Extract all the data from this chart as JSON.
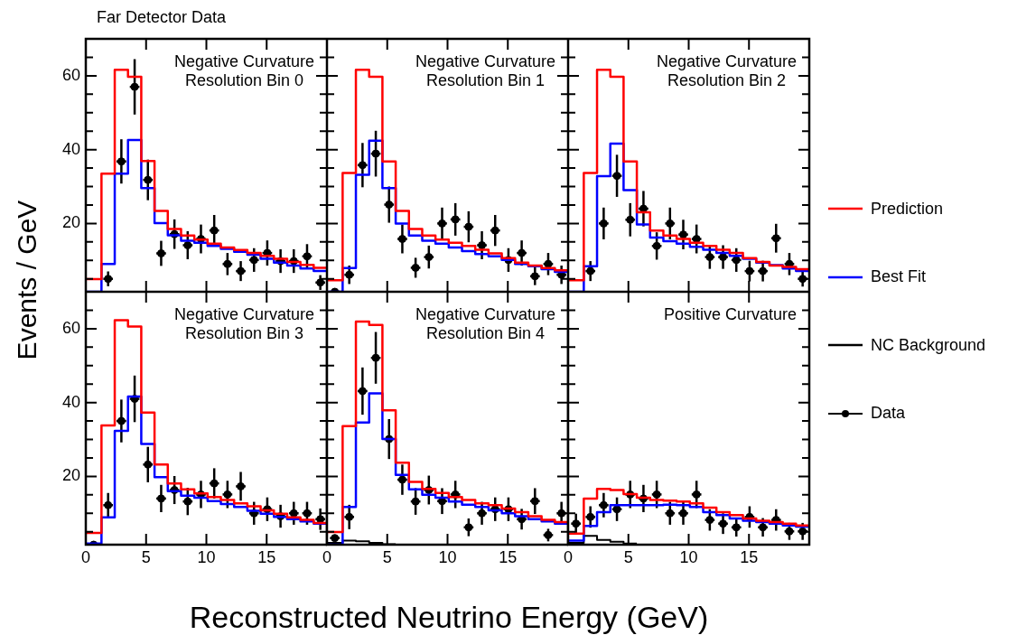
{
  "chart_data": [
    {
      "type": "histogram",
      "title": "Far Detector Data",
      "ylabel": "Events / GeV",
      "annotations": [
        "Negative Curvature\nResolution Bin 0"
      ],
      "bins": [
        0,
        1.3,
        2.4,
        3.5,
        4.6,
        5.7,
        6.8,
        7.9,
        9,
        10.1,
        11.2,
        12.3,
        13.4,
        14.5,
        15.6,
        16.7,
        17.8,
        18.9,
        20
      ],
      "xlim": [
        0,
        20
      ],
      "ylim": [
        1.5,
        70
      ],
      "xticks": [
        0,
        5,
        10,
        15
      ],
      "yticks": [
        {
          "value": 5,
          "label": null
        },
        {
          "value": 10,
          "label": null
        },
        {
          "value": 15,
          "label": null
        },
        20,
        {
          "value": 25,
          "label": null
        },
        {
          "value": 30,
          "label": null
        },
        {
          "value": 35,
          "label": null
        },
        40,
        {
          "value": 45,
          "label": null
        },
        {
          "value": 50,
          "label": null
        },
        {
          "value": 55,
          "label": null
        },
        60,
        {
          "value": 65,
          "label": null
        }
      ],
      "tick_labels": "y",
      "marker": "circle",
      "series": [
        {
          "color": "#ff0000",
          "values": [
            4.9,
            33.5,
            61.6,
            59.7,
            36.9,
            23.4,
            18.5,
            16.7,
            15.6,
            14.5,
            13.5,
            12.8,
            12,
            11.2,
            10.4,
            9.6,
            8.8,
            8.0
          ]
        },
        {
          "color": "#0000ff",
          "values": [
            1.5,
            9.0,
            33.5,
            42.6,
            29.6,
            20.1,
            16.8,
            15.3,
            14.8,
            13.9,
            13.1,
            12.3,
            11.5,
            10.4,
            9.4,
            8.6,
            7.8,
            7.1
          ]
        },
        {
          "type": "scatter",
          "color": "#000000",
          "x": [
            1.85,
            2.95,
            4.05,
            5.15,
            6.25,
            7.35,
            8.45,
            9.55,
            10.65,
            11.75,
            12.85,
            13.95,
            15.05,
            16.15,
            17.25,
            18.35,
            19.45
          ],
          "values": [
            5.0,
            36.8,
            57.0,
            31.8,
            11.9,
            17.1,
            14.1,
            15.8,
            18.1,
            9.0,
            7.1,
            10.1,
            12.0,
            9.8,
            9.8,
            11.1,
            4.0
          ],
          "errors": [
            2,
            6,
            7.5,
            5.5,
            3.4,
            4,
            3.8,
            3.9,
            4.2,
            3,
            2.7,
            3.2,
            3.4,
            3.2,
            3.2,
            3.3,
            2
          ],
          "xerrors": [
            0.4,
            0.4,
            0.4,
            0.4,
            0.4,
            0.4,
            0.4,
            0.4,
            0.4,
            0.4,
            0.4,
            0.4,
            0.4,
            0.4,
            0.4,
            0.4,
            0.4
          ]
        }
      ]
    },
    {
      "type": "histogram",
      "annotations": [
        "Negative Curvature\nResolution Bin 1"
      ],
      "bins": [
        0,
        1.3,
        2.4,
        3.5,
        4.6,
        5.7,
        6.8,
        7.9,
        9,
        10.1,
        11.2,
        12.3,
        13.4,
        14.5,
        15.6,
        16.7,
        17.8,
        18.9,
        20
      ],
      "xlim": [
        0,
        20
      ],
      "ylim": [
        1.5,
        70
      ],
      "xticks": [
        0,
        5,
        10,
        15
      ],
      "yticks": [
        {
          "value": 5,
          "label": null
        },
        {
          "value": 10,
          "label": null
        },
        {
          "value": 15,
          "label": null
        },
        20,
        {
          "value": 25,
          "label": null
        },
        {
          "value": 30,
          "label": null
        },
        {
          "value": 35,
          "label": null
        },
        40,
        {
          "value": 45,
          "label": null
        },
        {
          "value": 50,
          "label": null
        },
        {
          "value": 55,
          "label": null
        },
        60,
        {
          "value": 65,
          "label": null
        }
      ],
      "tick_labels": false,
      "marker": "circle",
      "series": [
        {
          "color": "#ff0000",
          "values": [
            4.6,
            33.7,
            61.6,
            59.7,
            36.8,
            23.4,
            18.5,
            16.7,
            15.6,
            14.8,
            13.9,
            12.9,
            11.9,
            10.6,
            9.4,
            8.6,
            7.9,
            7.3
          ]
        },
        {
          "color": "#0000ff",
          "values": [
            1.5,
            7.9,
            33.2,
            42.4,
            29.6,
            20.0,
            16.7,
            15.3,
            14.5,
            13.5,
            12.5,
            11.7,
            11.1,
            10.1,
            9.0,
            8.4,
            7.6,
            6.9
          ]
        },
        {
          "type": "scatter",
          "color": "#000000",
          "x": [
            0.65,
            1.85,
            2.95,
            4.05,
            5.15,
            6.25,
            7.35,
            8.45,
            9.55,
            10.65,
            11.75,
            12.85,
            13.95,
            15.05,
            16.15,
            17.25,
            18.35,
            19.45
          ],
          "values": [
            1.5,
            6.1,
            35.8,
            38.9,
            25.1,
            15.8,
            8.0,
            10.9,
            20.0,
            21.1,
            19.1,
            14.1,
            18.1,
            10.1,
            12.0,
            5.7,
            9.0,
            6.1
          ],
          "errors": [
            null,
            2.5,
            6,
            6.2,
            4.9,
            3.9,
            2.7,
            3.1,
            4.3,
            4.4,
            4.2,
            3.8,
            4.2,
            3.2,
            3.4,
            2.4,
            3,
            2.5
          ],
          "xerrors": [
            0.4,
            0.4,
            0.4,
            0.4,
            0.4,
            0.4,
            0.4,
            0.4,
            0.4,
            0.4,
            0.4,
            0.4,
            0.4,
            0.4,
            0.4,
            0.4,
            0.4,
            0.4
          ]
        }
      ]
    },
    {
      "type": "histogram",
      "annotations": [
        "Negative Curvature\nResolution Bin 2"
      ],
      "bins": [
        0,
        1.3,
        2.4,
        3.5,
        4.6,
        5.7,
        6.8,
        7.9,
        9,
        10.1,
        11.2,
        12.3,
        13.4,
        14.5,
        15.6,
        16.7,
        17.8,
        18.9,
        20
      ],
      "xlim": [
        0,
        20
      ],
      "ylim": [
        1.5,
        70
      ],
      "xticks": [
        0,
        5,
        10,
        15
      ],
      "yticks": [
        {
          "value": 5,
          "label": null
        },
        {
          "value": 10,
          "label": null
        },
        {
          "value": 15,
          "label": null
        },
        20,
        {
          "value": 25,
          "label": null
        },
        {
          "value": 30,
          "label": null
        },
        {
          "value": 35,
          "label": null
        },
        40,
        {
          "value": 45,
          "label": null
        },
        {
          "value": 50,
          "label": null
        },
        {
          "value": 55,
          "label": null
        },
        60,
        {
          "value": 65,
          "label": null
        }
      ],
      "tick_labels": false,
      "marker": "circle",
      "series": [
        {
          "color": "#ff0000",
          "values": [
            4.6,
            33.7,
            61.6,
            59.7,
            36.8,
            23.0,
            18.1,
            16.7,
            15.8,
            14.8,
            13.9,
            12.9,
            12.0,
            10.6,
            9.6,
            8.6,
            8.2,
            7.6
          ]
        },
        {
          "color": "#0000ff",
          "values": [
            1.5,
            8.4,
            32.8,
            41.6,
            29.0,
            19.7,
            16.2,
            15.2,
            14.5,
            13.7,
            12.9,
            12.0,
            11.2,
            10.4,
            9.4,
            8.7,
            7.8,
            7.1
          ]
        },
        {
          "type": "scatter",
          "color": "#000000",
          "x": [
            1.85,
            2.95,
            4.05,
            5.15,
            6.25,
            7.35,
            8.45,
            9.55,
            10.65,
            11.75,
            12.85,
            13.95,
            15.05,
            16.15,
            17.25,
            18.35,
            19.45
          ],
          "values": [
            7.1,
            20.0,
            32.9,
            21.0,
            24.0,
            13.9,
            20.0,
            17.0,
            15.8,
            10.9,
            10.9,
            10.1,
            7.1,
            7.1,
            16.0,
            9.0,
            5.0
          ],
          "errors": [
            2.7,
            4.3,
            5.7,
            4.5,
            4.8,
            3.7,
            4.3,
            4,
            3.9,
            3.2,
            3.2,
            3.2,
            2.8,
            2.8,
            3.9,
            3,
            2.1
          ],
          "xerrors": [
            0.4,
            0.4,
            0.4,
            0.4,
            0.4,
            0.4,
            0.4,
            0.4,
            0.4,
            0.4,
            0.4,
            0.4,
            0.4,
            0.4,
            0.4,
            0.4,
            0.4
          ]
        }
      ]
    },
    {
      "type": "histogram",
      "annotations": [
        "Negative Curvature\nResolution Bin 3"
      ],
      "bins": [
        0,
        1.3,
        2.4,
        3.5,
        4.6,
        5.7,
        6.8,
        7.9,
        9,
        10.1,
        11.2,
        12.3,
        13.4,
        14.5,
        15.6,
        16.7,
        17.8,
        18.9,
        20
      ],
      "xlim": [
        0,
        20
      ],
      "ylim": [
        1.5,
        70
      ],
      "xticks": [
        0,
        5,
        10,
        15
      ],
      "yticks": [
        {
          "value": 5,
          "label": null
        },
        {
          "value": 10,
          "label": null
        },
        {
          "value": 15,
          "label": null
        },
        20,
        {
          "value": 25,
          "label": null
        },
        {
          "value": 30,
          "label": null
        },
        {
          "value": 35,
          "label": null
        },
        40,
        {
          "value": 45,
          "label": null
        },
        {
          "value": 50,
          "label": null
        },
        {
          "value": 55,
          "label": null
        },
        60,
        {
          "value": 65,
          "label": null
        }
      ],
      "marker": "circle",
      "series": [
        {
          "color": "#ff0000",
          "values": [
            4.7,
            33.8,
            62.3,
            60.6,
            37.3,
            23.2,
            18.1,
            16.5,
            15.4,
            14.4,
            13.6,
            12.7,
            11.9,
            10.8,
            9.9,
            8.9,
            8.2,
            7.4
          ]
        },
        {
          "color": "#0000ff",
          "values": [
            1.8,
            8.9,
            32.3,
            41.6,
            28.8,
            19.8,
            16.0,
            14.8,
            14.2,
            13.3,
            12.5,
            11.7,
            10.7,
            9.9,
            9.0,
            8.4,
            7.8,
            7.2
          ]
        },
        {
          "type": "scatter",
          "color": "#000000",
          "x": [
            0.65,
            1.85,
            2.95,
            4.05,
            5.15,
            6.25,
            7.35,
            8.45,
            9.55,
            10.65,
            11.75,
            12.85,
            13.95,
            15.05,
            16.15,
            17.25,
            18.35,
            19.45
          ],
          "values": [
            1.5,
            12.2,
            35.0,
            41.0,
            23.2,
            14.0,
            16.3,
            13.2,
            15.1,
            18.1,
            15.1,
            17.3,
            10.0,
            11.1,
            9.2,
            10.0,
            10.0,
            8.4
          ],
          "errors": [
            null,
            3.3,
            5.8,
            6.3,
            4.8,
            3.7,
            3.8,
            3.7,
            3.7,
            4.1,
            3.7,
            3.9,
            3.1,
            3.2,
            3.1,
            3.1,
            3.1,
            2.9
          ],
          "xerrors": [
            0.4,
            0.4,
            0.4,
            0.4,
            0.4,
            0.4,
            0.4,
            0.4,
            0.4,
            0.4,
            0.4,
            0.4,
            0.4,
            0.4,
            0.4,
            0.4,
            0.4,
            0.4
          ]
        }
      ]
    },
    {
      "type": "histogram",
      "xlabel": "Reconstructed Neutrino Energy (GeV)",
      "annotations": [
        "Negative Curvature\nResolution Bin 4"
      ],
      "bins": [
        0,
        1.3,
        2.4,
        3.5,
        4.6,
        5.7,
        6.8,
        7.9,
        9,
        10.1,
        11.2,
        12.3,
        13.4,
        14.5,
        15.6,
        16.7,
        17.8,
        18.9,
        20
      ],
      "xlim": [
        0,
        20
      ],
      "ylim": [
        1.5,
        70
      ],
      "xticks": [
        0,
        5,
        10,
        15
      ],
      "yticks": [
        {
          "value": 5,
          "label": null
        },
        {
          "value": 10,
          "label": null
        },
        {
          "value": 15,
          "label": null
        },
        20,
        {
          "value": 25,
          "label": null
        },
        {
          "value": 30,
          "label": null
        },
        {
          "value": 35,
          "label": null
        },
        40,
        {
          "value": 45,
          "label": null
        },
        {
          "value": 50,
          "label": null
        },
        {
          "value": 55,
          "label": null
        },
        60,
        {
          "value": 65,
          "label": null
        }
      ],
      "tick_labels": "x",
      "marker": "circle",
      "series": [
        {
          "color": "#ff0000",
          "values": [
            4.9,
            33.6,
            61.9,
            61.0,
            37.9,
            23.7,
            18.5,
            16.6,
            15.5,
            14.4,
            13.6,
            12.7,
            12.2,
            11.3,
            10.3,
            9.2,
            8.2,
            7.6
          ]
        },
        {
          "color": "#0000ff",
          "values": [
            1.5,
            11.7,
            34.6,
            42.5,
            30.1,
            20.4,
            16.5,
            15.0,
            14.2,
            13.2,
            12.3,
            11.7,
            10.8,
            10.0,
            9.2,
            8.4,
            7.8,
            7.2
          ]
        },
        {
          "color": "#000000",
          "bins": [
            0,
            1.3,
            2.4,
            3.5,
            4.6,
            5.7
          ],
          "values": [
            2.0,
            2.6,
            2.4,
            2.0,
            1.6
          ]
        },
        {
          "type": "scatter",
          "color": "#000000",
          "x": [
            0.65,
            1.85,
            2.95,
            4.05,
            5.15,
            6.25,
            7.35,
            8.45,
            9.55,
            10.65,
            11.75,
            12.85,
            13.95,
            15.05,
            16.15,
            17.25,
            18.35,
            19.45
          ],
          "values": [
            3.3,
            9.0,
            43.1,
            52.1,
            30.1,
            19.1,
            13.2,
            16.3,
            13.3,
            15.1,
            6.2,
            10.0,
            11.1,
            11.1,
            8.4,
            13.3,
            4.1,
            10.0
          ],
          "errors": [
            null,
            3.3,
            6.4,
            7,
            5.4,
            4.1,
            3.6,
            3.9,
            3.5,
            3.7,
            2.4,
            3.1,
            3.2,
            3.2,
            2.8,
            3.5,
            1.7,
            3.1
          ],
          "xerrors": [
            0.4,
            0.4,
            0.4,
            0.4,
            0.4,
            0.4,
            0.4,
            0.4,
            0.4,
            0.4,
            0.4,
            0.4,
            0.4,
            0.4,
            0.4,
            0.4,
            0.4,
            0.4
          ]
        }
      ]
    },
    {
      "type": "histogram",
      "annotations": [
        "Positive Curvature"
      ],
      "legend": "right",
      "bins": [
        0,
        1.3,
        2.4,
        3.5,
        4.6,
        5.7,
        6.8,
        7.9,
        9,
        10.1,
        11.2,
        12.3,
        13.4,
        14.5,
        15.6,
        16.7,
        17.8,
        18.9,
        20
      ],
      "xlim": [
        0,
        20
      ],
      "ylim": [
        1.5,
        70
      ],
      "xticks": [
        0,
        5,
        10,
        15
      ],
      "yticks": [
        {
          "value": 5,
          "label": null
        },
        {
          "value": 10,
          "label": null
        },
        {
          "value": 15,
          "label": null
        },
        20,
        {
          "value": 25,
          "label": null
        },
        {
          "value": 30,
          "label": null
        },
        {
          "value": 35,
          "label": null
        },
        40,
        {
          "value": 45,
          "label": null
        },
        {
          "value": 50,
          "label": null
        },
        {
          "value": 55,
          "label": null
        },
        60,
        {
          "value": 65,
          "label": null
        }
      ],
      "tick_labels": "x",
      "marker": "circle",
      "series": [
        {
          "name": "Prediction",
          "color": "#ff0000",
          "values": [
            4.5,
            14.0,
            16.6,
            16.3,
            15.2,
            14.2,
            13.6,
            13.4,
            13.2,
            12.7,
            11.5,
            10.3,
            9.5,
            8.6,
            8.0,
            7.6,
            7.2,
            6.7
          ]
        },
        {
          "name": "Best Fit",
          "color": "#0000ff",
          "values": [
            2.6,
            6.6,
            10.3,
            12.2,
            12.2,
            12.2,
            12.2,
            12.3,
            12.2,
            11.7,
            10.3,
            9.5,
            8.6,
            8.0,
            7.6,
            7.2,
            6.7,
            6.4
          ]
        },
        {
          "name": "NC Background",
          "color": "#000000",
          "bins": [
            0,
            1.3,
            2.4,
            3.5,
            4.6,
            5.7
          ],
          "values": [
            2.0,
            3.9,
            2.8,
            2.3,
            1.8
          ]
        },
        {
          "type": "scatter",
          "name": "Data",
          "color": "#000000",
          "x": [
            0.65,
            1.85,
            2.95,
            4.05,
            5.15,
            6.25,
            7.35,
            8.45,
            9.55,
            10.65,
            11.75,
            12.85,
            13.95,
            15.05,
            16.15,
            17.25,
            18.35,
            19.45
          ],
          "values": [
            7.2,
            9.0,
            12.2,
            11.1,
            15.1,
            14.0,
            15.1,
            10.0,
            10.0,
            15.1,
            8.2,
            7.2,
            6.2,
            9.0,
            6.2,
            8.2,
            5.1,
            5.1
          ],
          "errors": [
            2.7,
            2.9,
            3.3,
            3.2,
            3.7,
            3.7,
            3.7,
            3.1,
            3.1,
            3.7,
            2.9,
            2.8,
            2.5,
            2.9,
            2.5,
            2.9,
            2.3,
            2.3
          ],
          "xerrors": [
            0.4,
            0.4,
            0.4,
            0.4,
            0.4,
            0.4,
            0.4,
            0.4,
            0.4,
            0.4,
            0.4,
            0.4,
            0.4,
            0.4,
            0.4,
            0.4,
            0.4,
            0.4
          ]
        }
      ]
    }
  ]
}
